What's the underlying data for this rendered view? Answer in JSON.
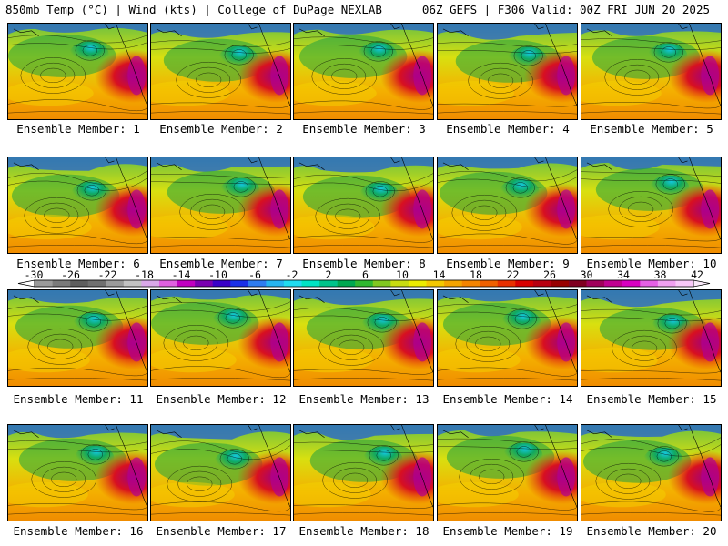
{
  "header": {
    "left": "850mb Temp (°C) | Wind (kts) | College of DuPage NEXLAB",
    "right": "06Z GEFS | F306 Valid: 00Z FRI JUN 20 2025"
  },
  "members": [
    {
      "label": "Ensemble Member: 1"
    },
    {
      "label": "Ensemble Member: 2"
    },
    {
      "label": "Ensemble Member: 3"
    },
    {
      "label": "Ensemble Member: 4"
    },
    {
      "label": "Ensemble Member: 5"
    },
    {
      "label": "Ensemble Member: 6"
    },
    {
      "label": "Ensemble Member: 7"
    },
    {
      "label": "Ensemble Member: 8"
    },
    {
      "label": "Ensemble Member: 9"
    },
    {
      "label": "Ensemble Member: 10"
    },
    {
      "label": "Ensemble Member: 11"
    },
    {
      "label": "Ensemble Member: 12"
    },
    {
      "label": "Ensemble Member: 13"
    },
    {
      "label": "Ensemble Member: 14"
    },
    {
      "label": "Ensemble Member: 15"
    },
    {
      "label": "Ensemble Member: 16"
    },
    {
      "label": "Ensemble Member: 17"
    },
    {
      "label": "Ensemble Member: 18"
    },
    {
      "label": "Ensemble Member: 19"
    },
    {
      "label": "Ensemble Member: 20"
    }
  ],
  "colorbar": {
    "labels": [
      "-30",
      "-26",
      "-22",
      "-18",
      "-14",
      "-10",
      "-6",
      "-2",
      "2",
      "6",
      "10",
      "14",
      "18",
      "22",
      "26",
      "30",
      "34",
      "38",
      "42"
    ],
    "colors": [
      "#9a9a9a",
      "#7a7a7a",
      "#5e5e5e",
      "#707070",
      "#9b9b9b",
      "#c2c2c2",
      "#d9a8e8",
      "#e060e0",
      "#c000c0",
      "#7a00b0",
      "#3a00c8",
      "#1a30e8",
      "#2e7cf0",
      "#26b4f0",
      "#20dcf0",
      "#00e4c4",
      "#00c48a",
      "#00a850",
      "#30b830",
      "#80c820",
      "#c8dc10",
      "#ecec00",
      "#f4c800",
      "#f4a400",
      "#f48400",
      "#f06000",
      "#e83000",
      "#d80000",
      "#b80010",
      "#980000",
      "#800020",
      "#a0005a",
      "#c00090",
      "#d800c0",
      "#e460e4",
      "#f0a0f0",
      "#f8c8f8"
    ]
  }
}
